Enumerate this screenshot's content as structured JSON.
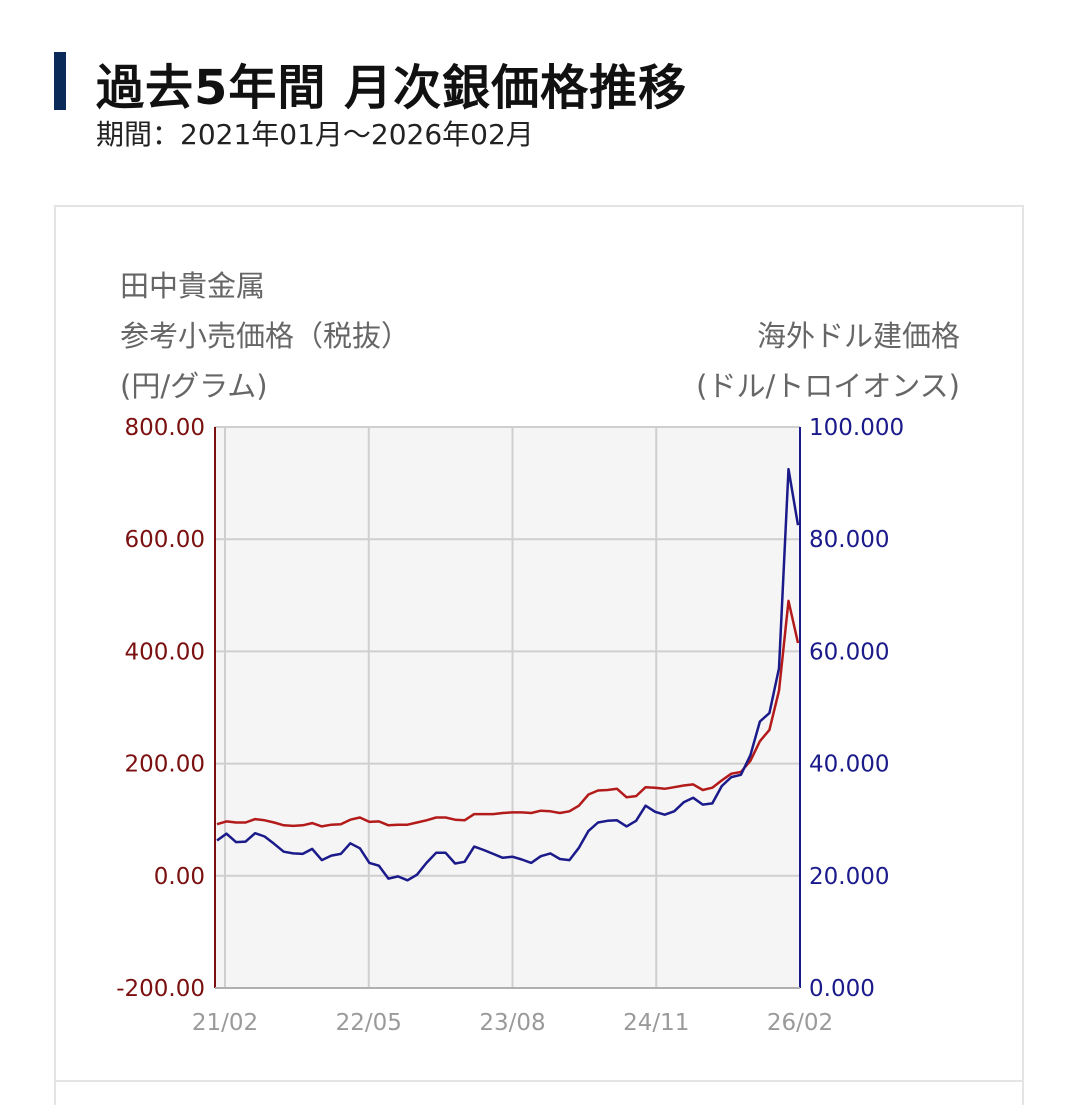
{
  "header": {
    "title": "過去5年間 月次銀価格推移",
    "subtitle": "期間：2021年01月～2026年02月"
  },
  "chart_data": {
    "type": "line",
    "left_axis_label": [
      "田中貴金属",
      "参考小売価格（税抜）",
      "(円/グラム)"
    ],
    "right_axis_label": [
      "海外ドル建価格",
      "(ドル/トロイオンス)"
    ],
    "left_ticks": [
      "800.00",
      "600.00",
      "400.00",
      "200.00",
      "0.00",
      "-200.00"
    ],
    "right_ticks": [
      "100.000",
      "80.000",
      "60.000",
      "40.000",
      "20.000",
      "0.000"
    ],
    "x_tick_labels": [
      "21/02",
      "22/05",
      "23/08",
      "24/11",
      "26/02"
    ],
    "ylim_left": [
      -200,
      800
    ],
    "ylim_right": [
      0,
      100
    ],
    "grid": true,
    "colors": {
      "yen_series": "#b31b1b",
      "usd_series": "#1a1a8a",
      "plot_bg": "#f5f5f5",
      "grid": "#cfcfcf"
    },
    "series": [
      {
        "axis": "left",
        "values": [
          92,
          97,
          95,
          95,
          101,
          99,
          95,
          90,
          89,
          90,
          94,
          88,
          91,
          92,
          100,
          104,
          96,
          97,
          90,
          91,
          91,
          95,
          99,
          104,
          104,
          100,
          99,
          110,
          110,
          110,
          112,
          113,
          113,
          112,
          116,
          115,
          112,
          115,
          125,
          145,
          152,
          153,
          155,
          140,
          142,
          158,
          157,
          155,
          158,
          161,
          163,
          153,
          157,
          170,
          182,
          185,
          205,
          240,
          260,
          330,
          490,
          415
        ]
      },
      {
        "axis": "right",
        "values": [
          26.3,
          27.5,
          26.0,
          26.1,
          27.6,
          27.0,
          25.7,
          24.3,
          24.0,
          23.9,
          24.8,
          22.8,
          23.6,
          23.9,
          25.8,
          24.9,
          22.3,
          21.8,
          19.5,
          19.9,
          19.2,
          20.2,
          22.3,
          24.1,
          24.1,
          22.2,
          22.5,
          25.2,
          24.6,
          23.9,
          23.2,
          23.4,
          22.9,
          22.3,
          23.5,
          24.0,
          23.0,
          22.8,
          25.0,
          28.0,
          29.5,
          29.8,
          29.9,
          28.8,
          29.8,
          32.5,
          31.4,
          30.9,
          31.5,
          33.1,
          33.9,
          32.7,
          32.9,
          36.0,
          37.6,
          38.0,
          41.5,
          47.5,
          49.0,
          57.0,
          92.5,
          82.5
        ]
      }
    ]
  }
}
